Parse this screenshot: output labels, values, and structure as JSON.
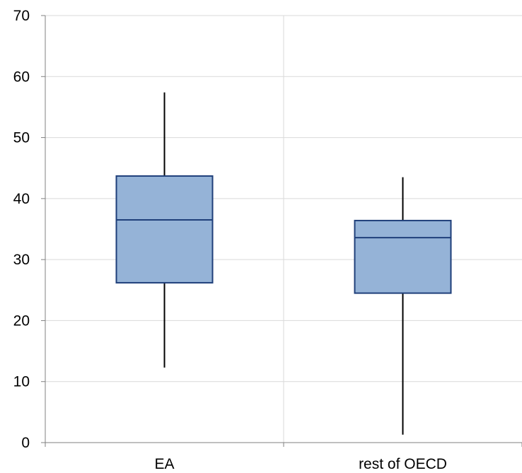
{
  "chart_data": {
    "type": "box",
    "title": "",
    "xlabel": "",
    "ylabel": "",
    "ylim": [
      0,
      70
    ],
    "yticks": [
      "0",
      "10",
      "20",
      "30",
      "40",
      "50",
      "60",
      "70"
    ],
    "grid": true,
    "categories": [
      "EA",
      "rest of OECD"
    ],
    "boxes": [
      {
        "category": "EA",
        "min": 12.3,
        "q1": 26.2,
        "median": 36.5,
        "q3": 43.7,
        "max": 57.4
      },
      {
        "category": "rest of OECD",
        "min": 1.3,
        "q1": 24.5,
        "median": 33.6,
        "q3": 36.4,
        "max": 43.5
      }
    ],
    "colors": {
      "box_fill": "#95b3d7",
      "box_edge": "#1f3f7a",
      "whisker": "#000000",
      "grid": "#d9d9d9",
      "axis": "#808080"
    }
  }
}
